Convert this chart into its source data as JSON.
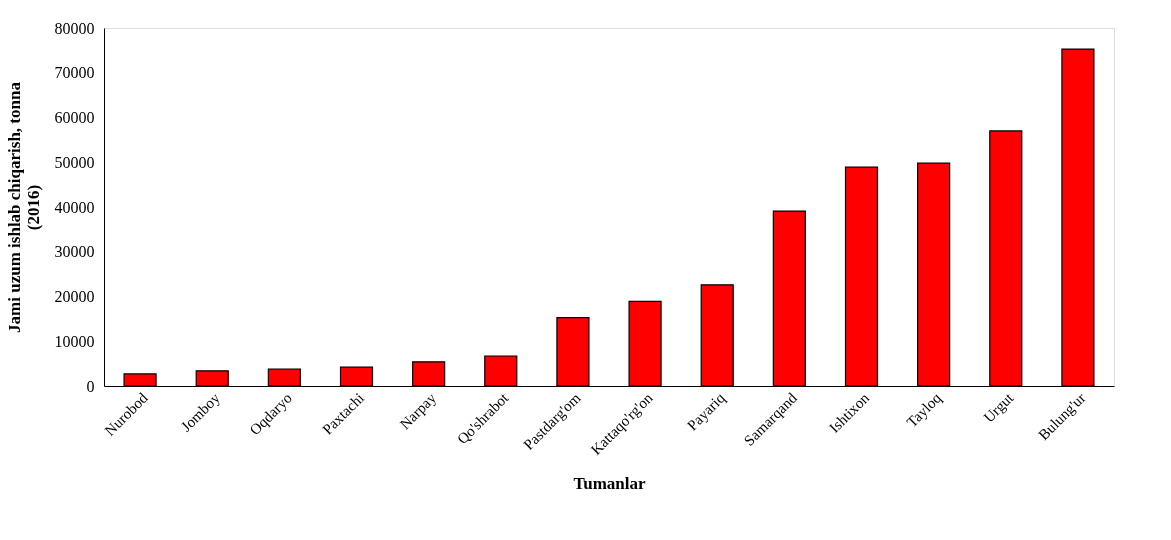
{
  "chart_data": {
    "type": "bar",
    "xlabel": "Tumanlar",
    "ylabel": "Jami uzum ishlab chiqarish, tonna (2016)",
    "categories": [
      "Nurobod",
      "Jomboy",
      "Oqdaryo",
      "Paxtachi",
      "Narpay",
      "Qo'shrabot",
      "Pastdarg'om",
      "Kattaqo'rg'on",
      "Payariq",
      "Samarqand",
      "Ishtixon",
      "Tayloq",
      "Urgut",
      "Bulung'ur"
    ],
    "values": [
      2700,
      3400,
      3800,
      4200,
      5400,
      6700,
      15300,
      18900,
      22600,
      39100,
      48900,
      49800,
      57000,
      75300
    ],
    "color": "#ff0000",
    "ylim": [
      0,
      80000
    ],
    "yticks": [
      0,
      10000,
      20000,
      30000,
      40000,
      50000,
      60000,
      70000,
      80000
    ],
    "grid": false
  }
}
